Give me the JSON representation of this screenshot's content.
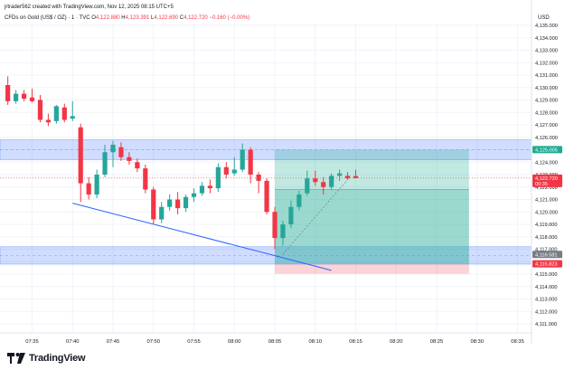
{
  "header": {
    "creator_line": "jrtrader562 created with TradingView.com, Nov 12, 2025 08:15 UTC+5"
  },
  "legend": {
    "symbol": "CFDs on Gold (US$ / OZ) · 1 · TVC",
    "open_label": "O",
    "open": "4,122.880",
    "high_label": "H",
    "high": "4,123.391",
    "low_label": "L",
    "low": "4,122.690",
    "close_label": "C",
    "close": "4,122.720",
    "change": "−0.160 (−0.00%)"
  },
  "price_axis": {
    "currency": "USD",
    "ticks": [
      "4,135.000",
      "4,134.000",
      "4,133.000",
      "4,132.000",
      "4,131.000",
      "4,130.000",
      "4,129.000",
      "4,128.000",
      "4,127.000",
      "4,126.000",
      "4,125.000",
      "4,124.000",
      "4,123.000",
      "4,122.000",
      "4,121.000",
      "4,120.000",
      "4,119.000",
      "4,118.000",
      "4,117.000",
      "4,116.000",
      "4,115.000",
      "4,114.000",
      "4,113.000",
      "4,112.000",
      "4,111.000"
    ],
    "badges": [
      {
        "price": 4125.005,
        "label": "4,125.005",
        "color": "#22ab94"
      },
      {
        "price": 4122.72,
        "label": "4,122.720",
        "sub": "00:35",
        "color": "#f23645"
      },
      {
        "price": 4116.581,
        "label": "4,116.581",
        "color": "#787b86"
      },
      {
        "price": 4115.823,
        "label": "4,115.823",
        "color": "#f23645"
      }
    ]
  },
  "time_axis": {
    "ticks": [
      "07:35",
      "07:40",
      "07:45",
      "07:50",
      "07:55",
      "08:00",
      "08:05",
      "08:10",
      "08:15",
      "08:20",
      "08:25",
      "08:30",
      "08:35"
    ]
  },
  "zones": [
    {
      "from": 4124.2,
      "to": 4125.8,
      "color": "#2962ff"
    },
    {
      "from": 4115.8,
      "to": 4117.2,
      "color": "#2962ff"
    }
  ],
  "position": {
    "entry": 4121.8,
    "target": 4125.005,
    "stop": 4115.823,
    "start_time": "08:05",
    "end_time": "08:29"
  },
  "trendline": {
    "from": {
      "time": "07:40",
      "price": 4120.7
    },
    "to": {
      "time": "08:12",
      "price": 4115.3
    }
  },
  "colors": {
    "up": "#26a69a",
    "down": "#f23645",
    "zone": "#2962ff",
    "profit": "#22ab94",
    "loss": "#f23645"
  },
  "chart_data": {
    "type": "candlestick",
    "series": [
      {
        "t": "07:32",
        "o": 4130.2,
        "h": 4130.9,
        "l": 4128.6,
        "c": 4128.9
      },
      {
        "t": "07:33",
        "o": 4128.9,
        "h": 4129.8,
        "l": 4128.7,
        "c": 4129.5
      },
      {
        "t": "07:34",
        "o": 4129.5,
        "h": 4129.8,
        "l": 4128.9,
        "c": 4129.1
      },
      {
        "t": "07:35",
        "o": 4129.2,
        "h": 4129.9,
        "l": 4128.8,
        "c": 4128.9
      },
      {
        "t": "07:36",
        "o": 4129.0,
        "h": 4129.4,
        "l": 4127.2,
        "c": 4127.4
      },
      {
        "t": "07:37",
        "o": 4127.4,
        "h": 4127.9,
        "l": 4126.9,
        "c": 4127.2
      },
      {
        "t": "07:38",
        "o": 4127.3,
        "h": 4128.6,
        "l": 4127.1,
        "c": 4128.5
      },
      {
        "t": "07:39",
        "o": 4128.4,
        "h": 4128.7,
        "l": 4127.2,
        "c": 4127.4
      },
      {
        "t": "07:40",
        "o": 4127.5,
        "h": 4128.9,
        "l": 4127.3,
        "c": 4127.7
      },
      {
        "t": "07:41",
        "o": 4126.8,
        "h": 4127.1,
        "l": 4120.8,
        "c": 4122.3
      },
      {
        "t": "07:42",
        "o": 4122.3,
        "h": 4122.8,
        "l": 4121.0,
        "c": 4121.4
      },
      {
        "t": "07:43",
        "o": 4121.4,
        "h": 4123.4,
        "l": 4121.1,
        "c": 4123.0
      },
      {
        "t": "07:44",
        "o": 4123.0,
        "h": 4125.4,
        "l": 4122.8,
        "c": 4124.8
      },
      {
        "t": "07:45",
        "o": 4124.8,
        "h": 4125.7,
        "l": 4123.6,
        "c": 4125.4
      },
      {
        "t": "07:46",
        "o": 4125.2,
        "h": 4125.6,
        "l": 4124.1,
        "c": 4124.4
      },
      {
        "t": "07:47",
        "o": 4124.4,
        "h": 4124.8,
        "l": 4123.8,
        "c": 4124.1
      },
      {
        "t": "07:48",
        "o": 4124.0,
        "h": 4124.3,
        "l": 4123.2,
        "c": 4123.5
      },
      {
        "t": "07:49",
        "o": 4123.5,
        "h": 4123.8,
        "l": 4121.5,
        "c": 4121.8
      },
      {
        "t": "07:50",
        "o": 4121.8,
        "h": 4122.0,
        "l": 4119.0,
        "c": 4119.4
      },
      {
        "t": "07:51",
        "o": 4119.4,
        "h": 4120.8,
        "l": 4119.1,
        "c": 4120.4
      },
      {
        "t": "07:52",
        "o": 4120.4,
        "h": 4121.4,
        "l": 4120.1,
        "c": 4121.0
      },
      {
        "t": "07:53",
        "o": 4121.0,
        "h": 4121.6,
        "l": 4119.8,
        "c": 4120.3
      },
      {
        "t": "07:54",
        "o": 4120.3,
        "h": 4121.4,
        "l": 4120.0,
        "c": 4121.2
      },
      {
        "t": "07:55",
        "o": 4121.2,
        "h": 4121.9,
        "l": 4120.8,
        "c": 4121.5
      },
      {
        "t": "07:56",
        "o": 4121.5,
        "h": 4122.4,
        "l": 4121.3,
        "c": 4122.1
      },
      {
        "t": "07:57",
        "o": 4122.1,
        "h": 4122.6,
        "l": 4121.5,
        "c": 4121.9
      },
      {
        "t": "07:58",
        "o": 4121.9,
        "h": 4123.9,
        "l": 4121.6,
        "c": 4123.6
      },
      {
        "t": "07:59",
        "o": 4123.6,
        "h": 4124.0,
        "l": 4122.7,
        "c": 4123.0
      },
      {
        "t": "08:00",
        "o": 4123.1,
        "h": 4124.4,
        "l": 4122.9,
        "c": 4123.4
      },
      {
        "t": "08:01",
        "o": 4123.4,
        "h": 4125.5,
        "l": 4123.2,
        "c": 4125.0
      },
      {
        "t": "08:02",
        "o": 4125.0,
        "h": 4125.2,
        "l": 4122.3,
        "c": 4123.0
      },
      {
        "t": "08:03",
        "o": 4123.0,
        "h": 4123.2,
        "l": 4121.5,
        "c": 4122.5
      },
      {
        "t": "08:04",
        "o": 4122.5,
        "h": 4122.7,
        "l": 4119.8,
        "c": 4120.0
      },
      {
        "t": "08:05",
        "o": 4120.0,
        "h": 4120.4,
        "l": 4117.0,
        "c": 4117.9
      },
      {
        "t": "08:06",
        "o": 4117.9,
        "h": 4119.3,
        "l": 4117.3,
        "c": 4119.0
      },
      {
        "t": "08:07",
        "o": 4119.0,
        "h": 4120.9,
        "l": 4118.7,
        "c": 4120.4
      },
      {
        "t": "08:08",
        "o": 4120.4,
        "h": 4121.7,
        "l": 4120.1,
        "c": 4121.4
      },
      {
        "t": "08:09",
        "o": 4121.5,
        "h": 4123.3,
        "l": 4121.3,
        "c": 4122.7
      },
      {
        "t": "08:10",
        "o": 4122.7,
        "h": 4123.3,
        "l": 4122.1,
        "c": 4122.4
      },
      {
        "t": "08:11",
        "o": 4122.4,
        "h": 4122.8,
        "l": 4121.4,
        "c": 4122.0
      },
      {
        "t": "08:12",
        "o": 4122.0,
        "h": 4123.1,
        "l": 4121.8,
        "c": 4122.9
      },
      {
        "t": "08:13",
        "o": 4122.9,
        "h": 4123.4,
        "l": 4122.5,
        "c": 4123.1
      },
      {
        "t": "08:14",
        "o": 4122.9,
        "h": 4123.2,
        "l": 4122.6,
        "c": 4122.7
      },
      {
        "t": "08:15",
        "o": 4122.88,
        "h": 4123.391,
        "l": 4122.69,
        "c": 4122.72
      }
    ]
  }
}
